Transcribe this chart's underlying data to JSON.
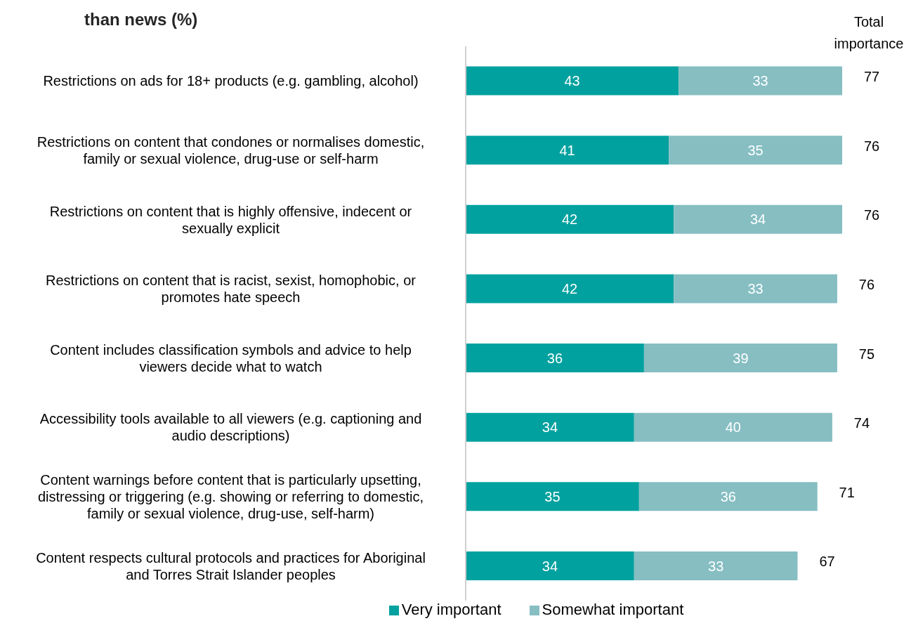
{
  "chart_data": {
    "type": "bar",
    "orientation": "horizontal",
    "stacked": true,
    "title": "than news (%)",
    "categories": [
      "Restrictions on ads for 18+ products (e.g. gambling, alcohol)",
      "Restrictions on content that condones or normalises domestic, family or sexual violence, drug-use or self-harm",
      "Restrictions on content that is highly offensive, indecent or sexually explicit",
      "Restrictions on content that is racist, sexist, homophobic, or promotes hate speech",
      "Content includes classification symbols and advice to help viewers decide what to watch",
      "Accessibility tools available to all viewers (e.g. captioning and audio descriptions)",
      "Content warnings before content that is particularly upsetting, distressing or triggering (e.g. showing or referring to domestic, family or sexual violence, drug-use, self-harm)",
      "Content respects cultural protocols and practices for Aboriginal and Torres Strait Islander peoples"
    ],
    "series": [
      {
        "name": "Very important",
        "color": "#00a19f",
        "values": [
          43,
          41,
          42,
          42,
          36,
          34,
          35,
          34
        ]
      },
      {
        "name": "Somewhat important",
        "color": "#86bec2",
        "values": [
          33,
          35,
          34,
          33,
          39,
          40,
          36,
          33
        ]
      }
    ],
    "totals": [
      "77",
      "76",
      "76",
      "76",
      "75",
      "74",
      "71",
      "67"
    ],
    "annotations": [
      "Total importance"
    ],
    "data_labels": true,
    "legend": "bottom",
    "tick_labels": "y"
  }
}
